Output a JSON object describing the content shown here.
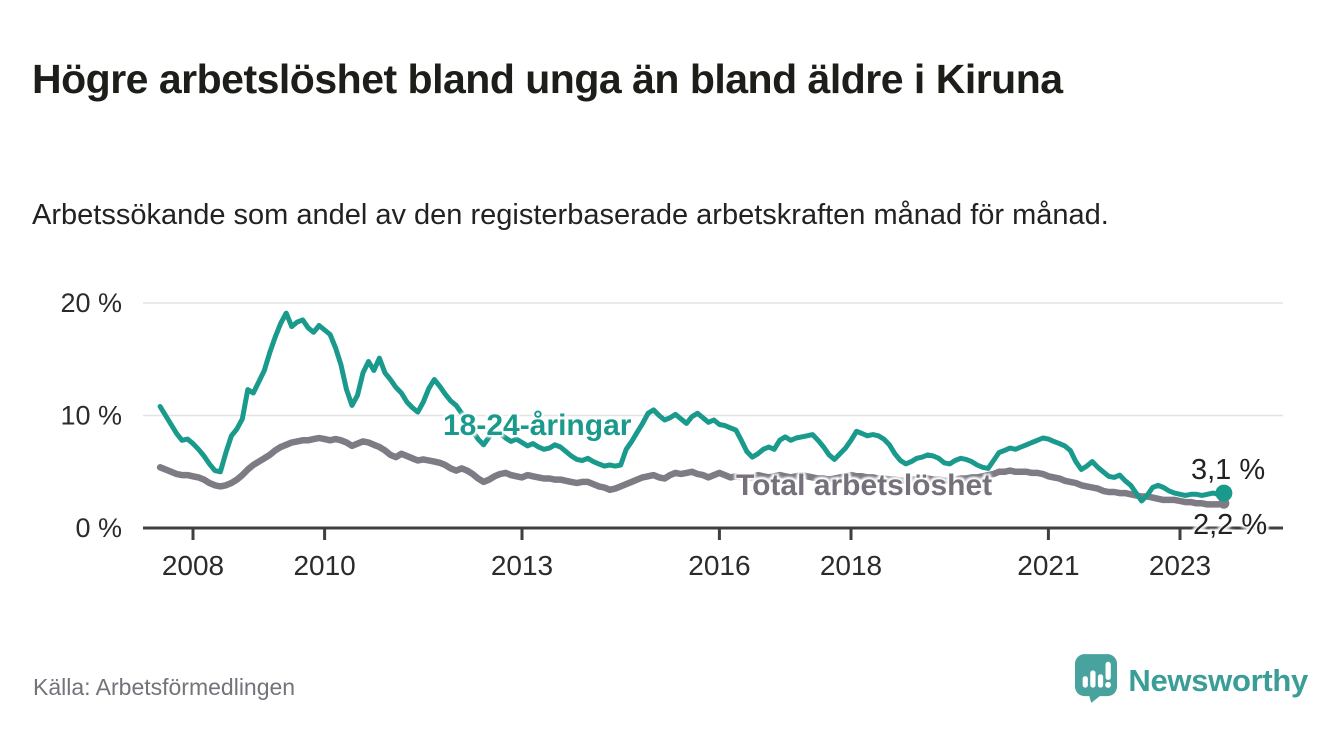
{
  "header": {
    "title": "Högre arbetslöshet bland unga än bland äldre i Kiruna",
    "subtitle": "Arbetssökande som andel av den registerbaserade arbetskraften månad för månad."
  },
  "footer": {
    "source": "Källa: Arbetsförmedlingen",
    "brand_name": "Newsworthy"
  },
  "colors": {
    "young_line": "#199a8c",
    "total_line": "#7f7b85",
    "axis": "#3f3f3f",
    "grid": "#e3e3e3",
    "tick_text": "#2b2b2b",
    "brand_teal": "#3b9d97",
    "logo_teal": "#48a39e"
  },
  "chart_data": {
    "type": "line",
    "title": "Högre arbetslöshet bland unga än bland äldre i Kiruna",
    "subtitle": "Arbetssökande som andel av den registerbaserade arbetskraften månad för månad.",
    "unit": "%",
    "start_decimal_year": 2007.5,
    "step_months": 1,
    "x_axis": {
      "tick_years": [
        2008,
        2010,
        2013,
        2016,
        2018,
        2021,
        2023
      ],
      "tick_labels": [
        "2008",
        "2010",
        "2013",
        "2016",
        "2018",
        "2021",
        "2023"
      ]
    },
    "y_axis": {
      "ticks": [
        0,
        10,
        20
      ],
      "tick_labels": [
        "0 %",
        "10 %",
        "20 %"
      ],
      "range": [
        0,
        21
      ],
      "grid": true
    },
    "legend_position": "inline-labels",
    "series": [
      {
        "name": "Total arbetslöshet",
        "label": "Total arbetslöshet",
        "end_label": "2,2 %",
        "end_value": 2.2,
        "color": "#7f7b85",
        "values": [
          5.4,
          5.2,
          5.0,
          4.8,
          4.7,
          4.7,
          4.6,
          4.5,
          4.3,
          4.0,
          3.8,
          3.7,
          3.8,
          4.0,
          4.3,
          4.7,
          5.2,
          5.6,
          5.9,
          6.2,
          6.5,
          6.9,
          7.2,
          7.4,
          7.6,
          7.7,
          7.8,
          7.8,
          7.9,
          8.0,
          7.9,
          7.8,
          7.9,
          7.8,
          7.6,
          7.3,
          7.5,
          7.7,
          7.6,
          7.4,
          7.2,
          6.9,
          6.5,
          6.3,
          6.6,
          6.4,
          6.2,
          6.0,
          6.1,
          6.0,
          5.9,
          5.8,
          5.6,
          5.3,
          5.1,
          5.3,
          5.1,
          4.8,
          4.4,
          4.1,
          4.3,
          4.6,
          4.8,
          4.9,
          4.7,
          4.6,
          4.5,
          4.7,
          4.6,
          4.5,
          4.4,
          4.4,
          4.3,
          4.3,
          4.2,
          4.1,
          4.0,
          4.1,
          4.1,
          3.9,
          3.7,
          3.6,
          3.4,
          3.5,
          3.7,
          3.9,
          4.1,
          4.3,
          4.5,
          4.6,
          4.7,
          4.5,
          4.4,
          4.7,
          4.9,
          4.8,
          4.9,
          5.0,
          4.8,
          4.7,
          4.5,
          4.7,
          4.9,
          4.7,
          4.5,
          4.6,
          4.5,
          4.4,
          4.5,
          4.7,
          4.6,
          4.5,
          4.6,
          4.7,
          4.6,
          4.5,
          4.6,
          4.7,
          4.6,
          4.5,
          4.4,
          4.4,
          4.3,
          4.4,
          4.5,
          4.6,
          4.7,
          4.6,
          4.6,
          4.5,
          4.5,
          4.4,
          4.4,
          4.3,
          4.3,
          4.2,
          4.2,
          4.3,
          4.3,
          4.4,
          4.4,
          4.3,
          4.3,
          4.2,
          4.2,
          4.3,
          4.4,
          4.4,
          4.5,
          4.5,
          4.6,
          4.7,
          4.8,
          5.0,
          5.0,
          5.1,
          5.0,
          5.0,
          5.0,
          4.9,
          4.9,
          4.8,
          4.6,
          4.5,
          4.4,
          4.2,
          4.1,
          4.0,
          3.8,
          3.7,
          3.6,
          3.5,
          3.3,
          3.2,
          3.2,
          3.1,
          3.1,
          3.0,
          2.9,
          2.8,
          2.8,
          2.7,
          2.6,
          2.5,
          2.5,
          2.5,
          2.4,
          2.3,
          2.3,
          2.2,
          2.2,
          2.1,
          2.1,
          2.1,
          2.2
        ]
      },
      {
        "name": "18-24-åringar",
        "label": "18-24-åringar",
        "end_label": "3,1 %",
        "end_value": 3.1,
        "color": "#199a8c",
        "values": [
          10.8,
          10.0,
          9.2,
          8.4,
          7.8,
          7.9,
          7.5,
          7.0,
          6.4,
          5.7,
          5.1,
          5.0,
          6.7,
          8.2,
          8.8,
          9.7,
          12.3,
          12.0,
          13.0,
          14.0,
          15.6,
          17.0,
          18.2,
          19.1,
          17.9,
          18.3,
          18.5,
          17.8,
          17.4,
          18.0,
          17.6,
          17.2,
          16.0,
          14.5,
          12.3,
          10.9,
          11.8,
          13.8,
          14.8,
          14.0,
          15.1,
          13.8,
          13.2,
          12.5,
          12.0,
          11.2,
          10.7,
          10.3,
          11.2,
          12.4,
          13.2,
          12.6,
          11.9,
          11.3,
          10.9,
          10.2,
          9.4,
          8.6,
          7.9,
          7.4,
          8.1,
          8.9,
          8.4,
          8.0,
          7.7,
          7.9,
          7.6,
          7.3,
          7.5,
          7.2,
          7.0,
          7.1,
          7.4,
          7.2,
          6.8,
          6.4,
          6.1,
          6.0,
          6.2,
          5.9,
          5.7,
          5.5,
          5.6,
          5.5,
          5.6,
          7.0,
          7.7,
          8.5,
          9.3,
          10.2,
          10.5,
          10.0,
          9.6,
          9.8,
          10.1,
          9.7,
          9.3,
          9.9,
          10.2,
          9.8,
          9.4,
          9.6,
          9.2,
          9.1,
          8.9,
          8.7,
          7.8,
          6.8,
          6.3,
          6.6,
          7.0,
          7.2,
          7.0,
          7.8,
          8.1,
          7.8,
          8.0,
          8.1,
          8.2,
          8.3,
          7.8,
          7.2,
          6.5,
          6.1,
          6.6,
          7.1,
          7.8,
          8.6,
          8.4,
          8.2,
          8.3,
          8.2,
          7.9,
          7.4,
          6.6,
          6.0,
          5.7,
          5.9,
          6.2,
          6.3,
          6.5,
          6.4,
          6.2,
          5.8,
          5.7,
          6.0,
          6.2,
          6.1,
          5.9,
          5.6,
          5.4,
          5.3,
          6.0,
          6.7,
          6.9,
          7.1,
          7.0,
          7.2,
          7.4,
          7.6,
          7.8,
          8.0,
          7.9,
          7.7,
          7.5,
          7.3,
          6.9,
          5.9,
          5.2,
          5.5,
          5.9,
          5.4,
          5.0,
          4.6,
          4.5,
          4.7,
          4.2,
          3.8,
          3.1,
          2.4,
          2.9,
          3.6,
          3.8,
          3.6,
          3.3,
          3.1,
          3.0,
          2.9,
          3.0,
          3.0,
          2.9,
          3.0,
          3.1,
          3.0,
          3.1
        ]
      }
    ]
  }
}
